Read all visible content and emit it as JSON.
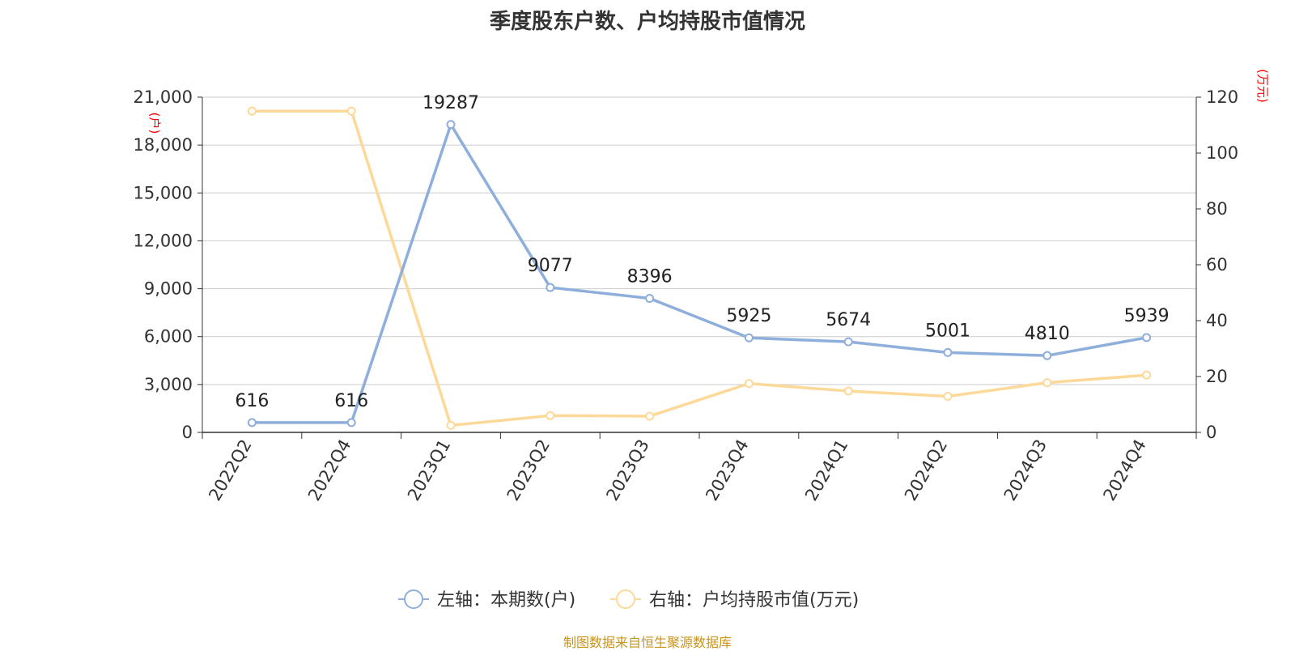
{
  "title": "季度股东户数、户均持股市值情况",
  "source": "制图数据来自恒生聚源数据库",
  "colors": {
    "series_left": "#8eaedb",
    "series_right": "#fdd999",
    "unit_label": "#ff0000",
    "source": "#c8941e"
  },
  "chart_data": {
    "type": "line",
    "categories": [
      "2022Q2",
      "2022Q4",
      "2023Q1",
      "2023Q2",
      "2023Q3",
      "2023Q4",
      "2024Q1",
      "2024Q2",
      "2024Q3",
      "2024Q4"
    ],
    "y_left": {
      "unit": "(户)",
      "ylim": [
        0,
        21000
      ],
      "ticks": [
        0,
        3000,
        6000,
        9000,
        12000,
        15000,
        18000,
        21000
      ],
      "tick_labels": [
        "0",
        "3,000",
        "6,000",
        "9,000",
        "12,000",
        "15,000",
        "18,000",
        "21,000"
      ]
    },
    "y_right": {
      "unit": "(万元)",
      "ylim": [
        0,
        120
      ],
      "ticks": [
        0,
        20,
        40,
        60,
        80,
        100,
        120
      ],
      "tick_labels": [
        "0",
        "20",
        "40",
        "60",
        "80",
        "100",
        "120"
      ]
    },
    "grid": true,
    "legend_position": "bottom",
    "series": [
      {
        "name": "左轴：本期数(户)",
        "axis": "left",
        "values": [
          616,
          616,
          19287,
          9077,
          8396,
          5925,
          5674,
          5001,
          4810,
          5939
        ],
        "data_labels": [
          "616",
          "616",
          "19287",
          "9077",
          "8396",
          "5925",
          "5674",
          "5001",
          "4810",
          "5939"
        ]
      },
      {
        "name": "右轴：户均持股市值(万元)",
        "axis": "right",
        "values": [
          115.0,
          115.0,
          2.5,
          6.0,
          5.8,
          17.5,
          14.8,
          12.9,
          17.8,
          20.5
        ]
      }
    ]
  }
}
